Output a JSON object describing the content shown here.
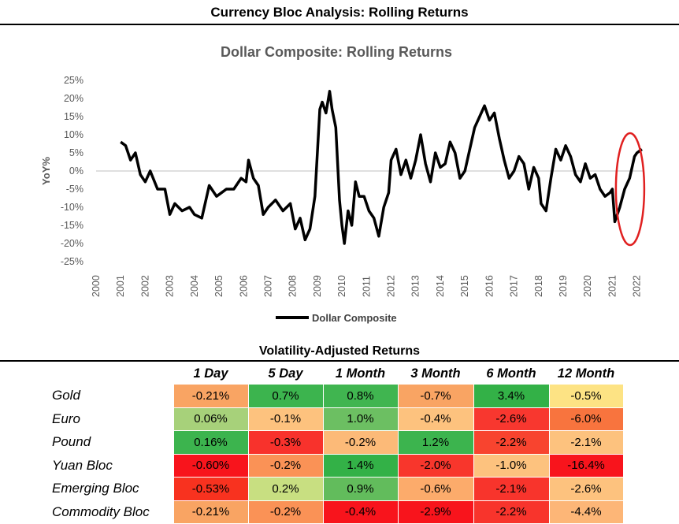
{
  "page_title": "Currency Bloc Analysis: Rolling Returns",
  "chart_data": {
    "type": "line",
    "title": "Dollar Composite: Rolling Returns",
    "ylabel": "YoY%",
    "xlabel": "",
    "ylim": [
      -25,
      25
    ],
    "yticks": [
      25,
      20,
      15,
      10,
      5,
      0,
      -5,
      -10,
      -15,
      -20,
      -25
    ],
    "ytick_labels": [
      "25%",
      "20%",
      "15%",
      "10%",
      "5%",
      "0%",
      "-5%",
      "-10%",
      "-15%",
      "-20%",
      "-25%"
    ],
    "xlim": [
      2000,
      2022.3
    ],
    "xticks": [
      "2000",
      "2001",
      "2002",
      "2003",
      "2004",
      "2005",
      "2006",
      "2007",
      "2008",
      "2009",
      "2010",
      "2011",
      "2012",
      "2013",
      "2014",
      "2015",
      "2016",
      "2017",
      "2018",
      "2019",
      "2020",
      "2021",
      "2022"
    ],
    "zero_line": true,
    "legend": "bottom-center",
    "annotation": "red ellipse highlighting 2021-2022 rebound",
    "series": [
      {
        "name": "Dollar Composite",
        "color": "#000000",
        "x": [
          2001.0,
          2001.2,
          2001.4,
          2001.6,
          2001.8,
          2002.0,
          2002.2,
          2002.5,
          2002.8,
          2003.0,
          2003.2,
          2003.5,
          2003.8,
          2004.0,
          2004.3,
          2004.6,
          2004.9,
          2005.1,
          2005.3,
          2005.6,
          2005.9,
          2006.1,
          2006.2,
          2006.4,
          2006.6,
          2006.8,
          2007.0,
          2007.3,
          2007.6,
          2007.9,
          2008.1,
          2008.3,
          2008.5,
          2008.7,
          2008.9,
          2009.0,
          2009.1,
          2009.2,
          2009.35,
          2009.5,
          2009.6,
          2009.75,
          2009.9,
          2010.0,
          2010.1,
          2010.25,
          2010.4,
          2010.55,
          2010.7,
          2010.9,
          2011.1,
          2011.3,
          2011.5,
          2011.7,
          2011.9,
          2012.0,
          2012.2,
          2012.4,
          2012.6,
          2012.8,
          2013.0,
          2013.2,
          2013.4,
          2013.6,
          2013.8,
          2014.0,
          2014.2,
          2014.4,
          2014.6,
          2014.8,
          2015.0,
          2015.2,
          2015.4,
          2015.6,
          2015.8,
          2016.0,
          2016.2,
          2016.4,
          2016.6,
          2016.8,
          2017.0,
          2017.2,
          2017.4,
          2017.6,
          2017.8,
          2018.0,
          2018.1,
          2018.3,
          2018.5,
          2018.7,
          2018.9,
          2019.1,
          2019.3,
          2019.5,
          2019.7,
          2019.9,
          2020.1,
          2020.3,
          2020.5,
          2020.7,
          2020.9,
          2021.0,
          2021.1,
          2021.3,
          2021.5,
          2021.7,
          2021.9,
          2022.0,
          2022.2
        ],
        "values": [
          8,
          7,
          3,
          5,
          -1,
          -3,
          0,
          -5,
          -5,
          -12,
          -9,
          -11,
          -10,
          -12,
          -13,
          -4,
          -7,
          -6,
          -5,
          -5,
          -2,
          -3,
          3,
          -2,
          -4,
          -12,
          -10,
          -8,
          -11,
          -9,
          -16,
          -13,
          -19,
          -16,
          -7,
          5,
          17,
          19,
          16,
          22,
          17,
          12,
          -8,
          -15,
          -20,
          -11,
          -15,
          -3,
          -7,
          -7,
          -11,
          -13,
          -18,
          -10,
          -6,
          3,
          6,
          -1,
          3,
          -2,
          3,
          10,
          2,
          -3,
          5,
          1,
          2,
          8,
          5,
          -2,
          0,
          6,
          12,
          15,
          18,
          14,
          16,
          9,
          3,
          -2,
          0,
          4,
          2,
          -5,
          1,
          -2,
          -9,
          -11,
          -2,
          6,
          3,
          7,
          4,
          -1,
          -3,
          2,
          -2,
          -1,
          -5,
          -7,
          -6,
          -5,
          -14,
          -10,
          -5,
          -2,
          4,
          5,
          6
        ]
      }
    ]
  },
  "table": {
    "title": "Volatility-Adjusted Returns",
    "columns": [
      "1 Day",
      "5 Day",
      "1 Month",
      "3 Month",
      "6 Month",
      "12 Month"
    ],
    "rows": [
      {
        "label": "Gold",
        "cells": [
          {
            "text": "-0.21%",
            "color": "#f9a463"
          },
          {
            "text": "0.7%",
            "color": "#3cb44e"
          },
          {
            "text": "0.8%",
            "color": "#40b550"
          },
          {
            "text": "-0.7%",
            "color": "#f9a463"
          },
          {
            "text": "3.4%",
            "color": "#33b147"
          },
          {
            "text": "-0.5%",
            "color": "#fde384"
          }
        ]
      },
      {
        "label": "Euro",
        "cells": [
          {
            "text": "0.06%",
            "color": "#a7d17a"
          },
          {
            "text": "-0.1%",
            "color": "#fdc27e"
          },
          {
            "text": "1.0%",
            "color": "#6cbf62"
          },
          {
            "text": "-0.4%",
            "color": "#fdc27e"
          },
          {
            "text": "-2.6%",
            "color": "#f8372f"
          },
          {
            "text": "-6.0%",
            "color": "#f8743e"
          }
        ]
      },
      {
        "label": "Pound",
        "cells": [
          {
            "text": "0.16%",
            "color": "#3cb44e"
          },
          {
            "text": "-0.3%",
            "color": "#f8322c"
          },
          {
            "text": "-0.2%",
            "color": "#fcba78"
          },
          {
            "text": "1.2%",
            "color": "#3cb44e"
          },
          {
            "text": "-2.2%",
            "color": "#f8442f"
          },
          {
            "text": "-2.1%",
            "color": "#fdc27e"
          }
        ]
      },
      {
        "label": "Yuan Bloc",
        "cells": [
          {
            "text": "-0.60%",
            "color": "#f8141c"
          },
          {
            "text": "-0.2%",
            "color": "#fa9256"
          },
          {
            "text": "1.4%",
            "color": "#33b147"
          },
          {
            "text": "-2.0%",
            "color": "#f8362c"
          },
          {
            "text": "-1.0%",
            "color": "#fdc27e"
          },
          {
            "text": "-16.4%",
            "color": "#f8141c"
          }
        ]
      },
      {
        "label": "Emerging Bloc",
        "cells": [
          {
            "text": "-0.53%",
            "color": "#f8321f"
          },
          {
            "text": "0.2%",
            "color": "#c8df81"
          },
          {
            "text": "0.9%",
            "color": "#62bc5c"
          },
          {
            "text": "-0.6%",
            "color": "#fcab6b"
          },
          {
            "text": "-2.1%",
            "color": "#f8342c"
          },
          {
            "text": "-2.6%",
            "color": "#fdc27e"
          }
        ]
      },
      {
        "label": "Commodity Bloc",
        "cells": [
          {
            "text": "-0.21%",
            "color": "#f9a463"
          },
          {
            "text": "-0.2%",
            "color": "#fa9256"
          },
          {
            "text": "-0.4%",
            "color": "#f8141c"
          },
          {
            "text": "-2.9%",
            "color": "#f8141c"
          },
          {
            "text": "-2.2%",
            "color": "#f8342c"
          },
          {
            "text": "-4.4%",
            "color": "#fdb677"
          }
        ]
      }
    ]
  }
}
